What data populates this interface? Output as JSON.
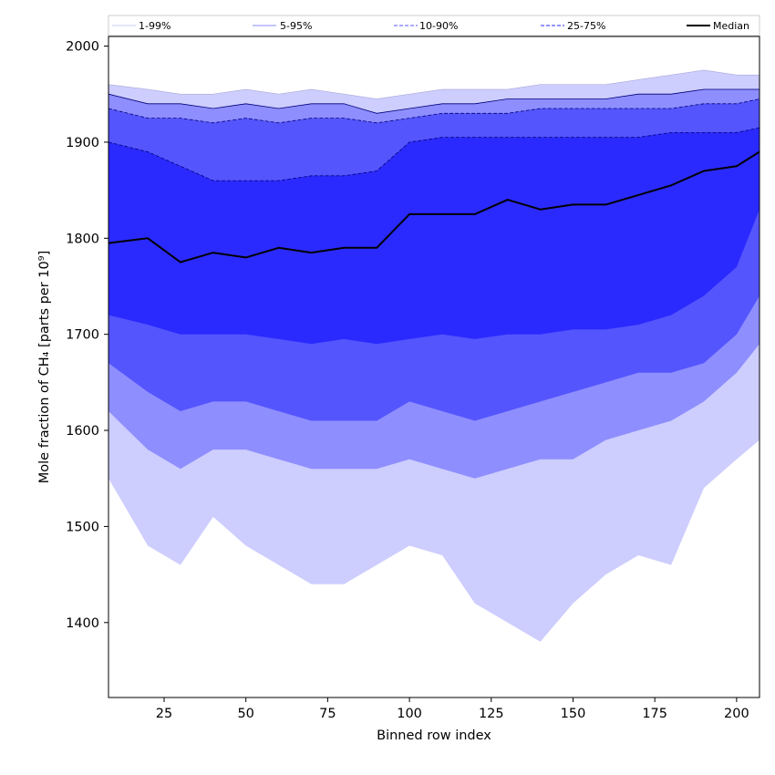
{
  "chart_data": {
    "type": "area",
    "xlabel": "Binned row index",
    "ylabel": "Mole fraction of CH₄ [parts per 10⁹]",
    "xlim": [
      8,
      207
    ],
    "ylim": [
      1322,
      2010
    ],
    "x_ticks": [
      25,
      50,
      75,
      100,
      125,
      150,
      175,
      200
    ],
    "y_ticks": [
      1400,
      1500,
      1600,
      1700,
      1800,
      1900,
      2000
    ],
    "grid": false,
    "legend_position": "top",
    "x": [
      8,
      20,
      30,
      40,
      50,
      60,
      70,
      80,
      90,
      100,
      110,
      120,
      130,
      140,
      150,
      160,
      170,
      180,
      190,
      200,
      207
    ],
    "bands": [
      {
        "name": "1-99%",
        "lower": [
          1550,
          1480,
          1460,
          1510,
          1480,
          1460,
          1440,
          1440,
          1460,
          1480,
          1470,
          1420,
          1400,
          1380,
          1420,
          1450,
          1470,
          1460,
          1540,
          1570,
          1590
        ],
        "upper": [
          1960,
          1955,
          1950,
          1950,
          1955,
          1950,
          1955,
          1950,
          1945,
          1950,
          1955,
          1955,
          1955,
          1960,
          1960,
          1960,
          1965,
          1970,
          1975,
          1970,
          1970
        ],
        "color": "#cdcdfe"
      },
      {
        "name": "5-95%",
        "lower": [
          1620,
          1580,
          1560,
          1580,
          1580,
          1570,
          1560,
          1560,
          1560,
          1570,
          1560,
          1550,
          1560,
          1570,
          1570,
          1590,
          1600,
          1610,
          1630,
          1660,
          1690
        ],
        "upper": [
          1950,
          1940,
          1940,
          1935,
          1940,
          1935,
          1940,
          1940,
          1930,
          1935,
          1940,
          1940,
          1945,
          1945,
          1945,
          1945,
          1950,
          1950,
          1955,
          1955,
          1955
        ],
        "color": "#8e8efe"
      },
      {
        "name": "10-90%",
        "lower": [
          1670,
          1640,
          1620,
          1630,
          1630,
          1620,
          1610,
          1610,
          1610,
          1630,
          1620,
          1610,
          1620,
          1630,
          1640,
          1650,
          1660,
          1660,
          1670,
          1700,
          1740
        ],
        "upper": [
          1935,
          1925,
          1925,
          1920,
          1925,
          1920,
          1925,
          1925,
          1920,
          1925,
          1930,
          1930,
          1930,
          1935,
          1935,
          1935,
          1935,
          1935,
          1940,
          1940,
          1945
        ],
        "color": "#5555fe"
      },
      {
        "name": "25-75%",
        "lower": [
          1720,
          1710,
          1700,
          1700,
          1700,
          1695,
          1690,
          1695,
          1690,
          1695,
          1700,
          1695,
          1700,
          1700,
          1705,
          1705,
          1710,
          1720,
          1740,
          1770,
          1830
        ],
        "upper": [
          1900,
          1890,
          1875,
          1860,
          1860,
          1860,
          1865,
          1865,
          1870,
          1900,
          1905,
          1905,
          1905,
          1905,
          1905,
          1905,
          1905,
          1910,
          1910,
          1910,
          1915
        ],
        "color": "#2a2afe"
      }
    ],
    "series": [
      {
        "name": "Median",
        "values": [
          1795,
          1800,
          1775,
          1785,
          1780,
          1790,
          1785,
          1790,
          1790,
          1825,
          1825,
          1825,
          1840,
          1830,
          1835,
          1835,
          1845,
          1855,
          1870,
          1875,
          1890
        ],
        "color": "#000000"
      }
    ],
    "legend": [
      {
        "label": "1-99%",
        "color": "#cdcdfe",
        "dash": "solid"
      },
      {
        "label": "5-95%",
        "color": "#8e8efe",
        "dash": "solid"
      },
      {
        "label": "10-90%",
        "color": "#5555fe",
        "dash": "dashed"
      },
      {
        "label": "25-75%",
        "color": "#2a2afe",
        "dash": "dashed"
      },
      {
        "label": "Median",
        "color": "#000000",
        "dash": "solid"
      }
    ]
  }
}
